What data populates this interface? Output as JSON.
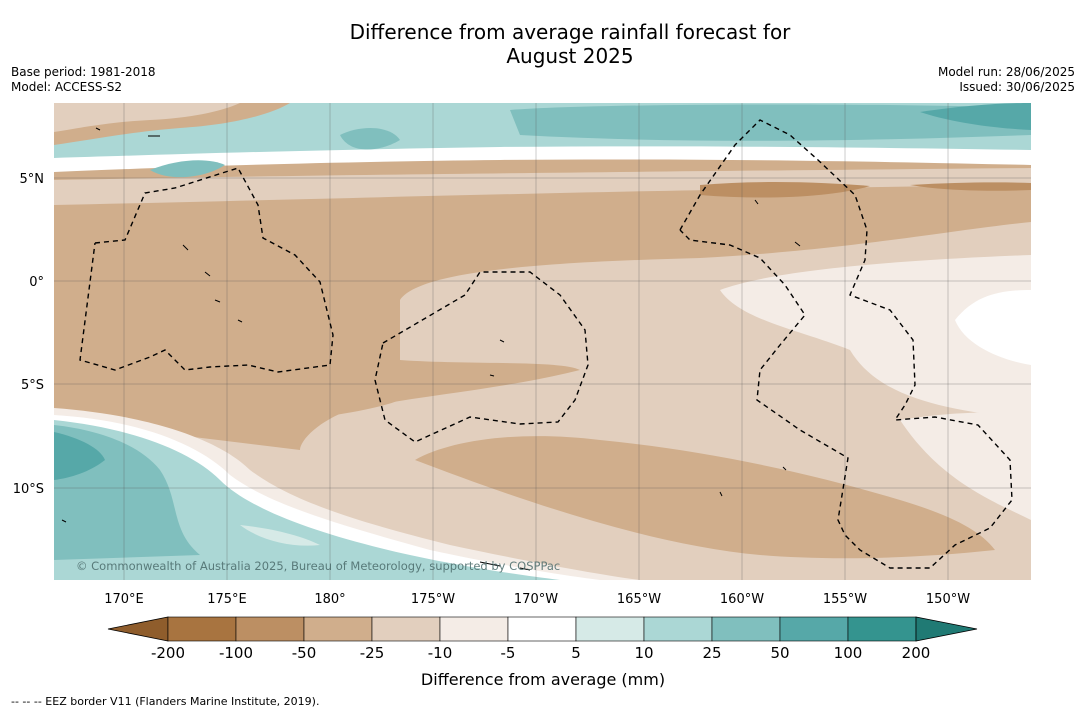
{
  "title": {
    "line1": "Difference from average rainfall forecast for",
    "line2": "August 2025"
  },
  "meta_left": {
    "base_period": "Base period: 1981-2018",
    "model": "Model: ACCESS-S2"
  },
  "meta_right": {
    "model_run": "Model run: 28/06/2025",
    "issued": "Issued: 30/06/2025"
  },
  "map": {
    "lon_range": [
      167.5,
      -145.5
    ],
    "lat_range": [
      -14.5,
      8.5
    ],
    "lon_ticks": [
      "170°E",
      "175°E",
      "180°",
      "175°W",
      "170°W",
      "165°W",
      "160°W",
      "155°W",
      "150°W"
    ],
    "lat_ticks": [
      "5°N",
      "0°",
      "5°S",
      "10°S"
    ],
    "grid": true,
    "copyright": "© Commonwealth of Australia 2025, Bureau of Meteorology, supported by COSPPac"
  },
  "legend": {
    "label": "Difference from average (mm)",
    "ticks": [
      "-200",
      "-100",
      "-50",
      "-25",
      "-10",
      "-5",
      "5",
      "10",
      "25",
      "50",
      "100",
      "200"
    ],
    "colors": [
      "#8f5d2c",
      "#a87440",
      "#bc8f63",
      "#d0ae8c",
      "#e2cfbe",
      "#f4ece6",
      "#ffffff",
      "#d6eae7",
      "#abd7d5",
      "#80bfbe",
      "#56a8a8",
      "#34948f",
      "#207a74"
    ]
  },
  "footer": "--  --  -- EEZ border V11 (Flanders Marine Institute, 2019)."
}
